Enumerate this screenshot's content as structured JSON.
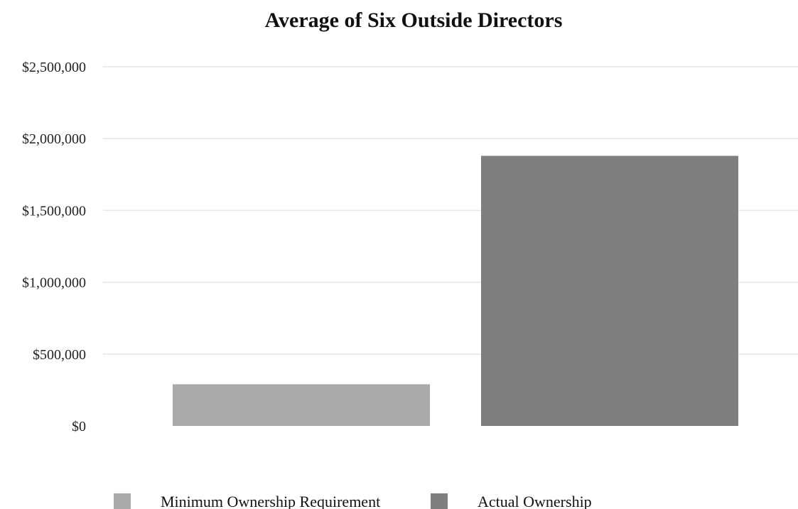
{
  "chart_data": {
    "type": "bar",
    "title": "Average of Six Outside Directors",
    "xlabel": "",
    "ylabel": "",
    "categories": [
      "Minimum Ownership Requirement",
      "Actual Ownership"
    ],
    "values": [
      290000,
      1880000
    ],
    "ylim": [
      0,
      2500000
    ],
    "yticks": [
      0,
      500000,
      1000000,
      1500000,
      2000000,
      2500000
    ],
    "ytick_labels": [
      "$0",
      "$500,000",
      "$1,000,000",
      "$1,500,000",
      "$2,000,000",
      "$2,500,000"
    ],
    "grid": true,
    "legend_position": "bottom",
    "colors": [
      "#aaaaaa",
      "#7f7f7f"
    ]
  }
}
